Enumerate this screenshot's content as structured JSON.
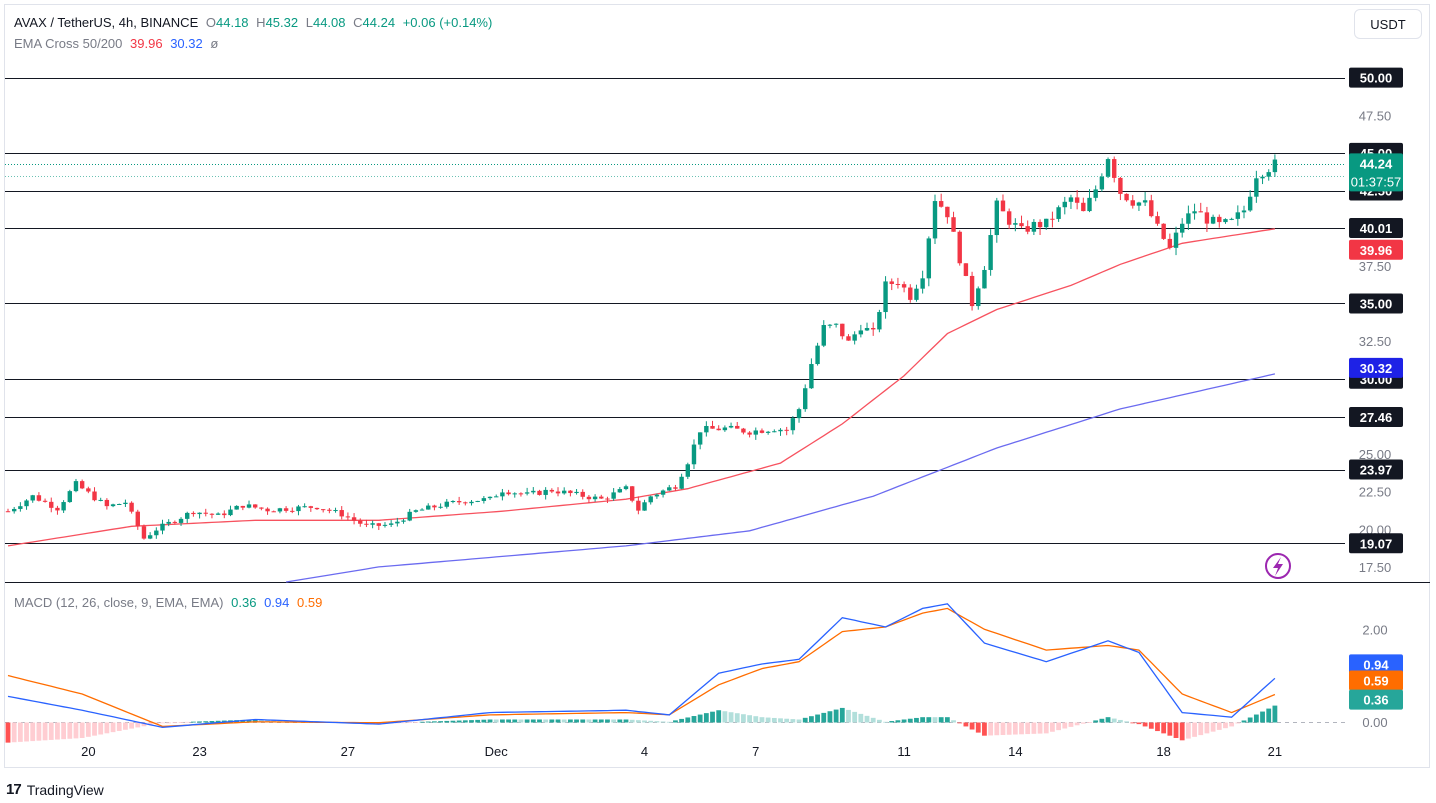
{
  "header": {
    "symbol": "AVAX / TetherUS, 4h, BINANCE",
    "o_label": "O",
    "o_value": "44.18",
    "h_label": "H",
    "h_value": "45.32",
    "l_label": "L",
    "l_value": "44.08",
    "c_label": "C",
    "c_value": "44.24",
    "change": "+0.06 (+0.14%)",
    "ema_label": "EMA Cross 50/200",
    "ema50_value": "39.96",
    "ema200_value": "30.32",
    "ema_extra": "ø"
  },
  "currency_button": "USDT",
  "macd_legend": {
    "label": "MACD (12, 26, close, 9, EMA, EMA)",
    "hist_value": "0.36",
    "macd_value": "0.94",
    "signal_value": "0.59"
  },
  "price_axis": {
    "ticks": [
      "47.50",
      "37.50",
      "32.50",
      "25.00",
      "22.50",
      "20.00",
      "17.50"
    ]
  },
  "horizontal_levels": [
    {
      "price": 50.0,
      "label": "50.00"
    },
    {
      "price": 45.0,
      "label": "45.00"
    },
    {
      "price": 42.5,
      "label": "42.50"
    },
    {
      "price": 40.01,
      "label": "40.01"
    },
    {
      "price": 35.0,
      "label": "35.00"
    },
    {
      "price": 30.0,
      "label": "30.00"
    },
    {
      "price": 27.46,
      "label": "27.46"
    },
    {
      "price": 23.97,
      "label": "23.97"
    },
    {
      "price": 19.07,
      "label": "19.07"
    }
  ],
  "price_badges": {
    "last_price": "44.24",
    "countdown": "01:37:57",
    "ema50": "39.96",
    "ema200": "30.32"
  },
  "macd_axis": {
    "ticks": [
      "2.00",
      "0.00"
    ],
    "badges": {
      "macd": "0.94",
      "signal": "0.59",
      "hist": "0.36"
    }
  },
  "x_axis": {
    "ticks": [
      {
        "label": "20",
        "bar": 13
      },
      {
        "label": "23",
        "bar": 31
      },
      {
        "label": "27",
        "bar": 55
      },
      {
        "label": "Dec",
        "bar": 79
      },
      {
        "label": "4",
        "bar": 103
      },
      {
        "label": "7",
        "bar": 121
      },
      {
        "label": "11",
        "bar": 145
      },
      {
        "label": "14",
        "bar": 163
      },
      {
        "label": "18",
        "bar": 187
      },
      {
        "label": "21",
        "bar": 205
      }
    ]
  },
  "colors": {
    "up": "#089981",
    "down": "#f23645",
    "ema50": "#f7525f",
    "ema200": "#6b6bf0",
    "macd": "#2962ff",
    "signal": "#ff6d00",
    "countdown_badge": "#089981",
    "ema50_badge": "#f23645",
    "ema200_badge": "#1e22e6"
  },
  "chart_data": {
    "type": "candlestick",
    "symbol": "AVAX / TetherUS",
    "interval": "4h",
    "ylim": [
      16.5,
      52.5
    ],
    "anchors": [
      {
        "bar": 0,
        "close": 21.2
      },
      {
        "bar": 4,
        "close": 22.2
      },
      {
        "bar": 8,
        "close": 21.4
      },
      {
        "bar": 11,
        "close": 23.0
      },
      {
        "bar": 16,
        "close": 21.5
      },
      {
        "bar": 19,
        "close": 21.8
      },
      {
        "bar": 22,
        "close": 19.4
      },
      {
        "bar": 24,
        "close": 20.0
      },
      {
        "bar": 27,
        "close": 20.6
      },
      {
        "bar": 30,
        "close": 21.2
      },
      {
        "bar": 34,
        "close": 20.9
      },
      {
        "bar": 38,
        "close": 21.6
      },
      {
        "bar": 42,
        "close": 21.3
      },
      {
        "bar": 46,
        "close": 21.4
      },
      {
        "bar": 50,
        "close": 21.5
      },
      {
        "bar": 54,
        "close": 21.0
      },
      {
        "bar": 58,
        "close": 20.2
      },
      {
        "bar": 62,
        "close": 20.3
      },
      {
        "bar": 66,
        "close": 21.2
      },
      {
        "bar": 70,
        "close": 21.6
      },
      {
        "bar": 74,
        "close": 21.9
      },
      {
        "bar": 78,
        "close": 22.0
      },
      {
        "bar": 80,
        "close": 22.6
      },
      {
        "bar": 84,
        "close": 22.3
      },
      {
        "bar": 88,
        "close": 22.6
      },
      {
        "bar": 92,
        "close": 22.3
      },
      {
        "bar": 96,
        "close": 22.0
      },
      {
        "bar": 100,
        "close": 22.7
      },
      {
        "bar": 102,
        "close": 21.3
      },
      {
        "bar": 104,
        "close": 22.2
      },
      {
        "bar": 108,
        "close": 22.9
      },
      {
        "bar": 110,
        "close": 24.5
      },
      {
        "bar": 112,
        "close": 26.6
      },
      {
        "bar": 116,
        "close": 26.7
      },
      {
        "bar": 120,
        "close": 26.5
      },
      {
        "bar": 124,
        "close": 26.7
      },
      {
        "bar": 126,
        "close": 26.6
      },
      {
        "bar": 128,
        "close": 28.0
      },
      {
        "bar": 130,
        "close": 31.0
      },
      {
        "bar": 132,
        "close": 33.4
      },
      {
        "bar": 134,
        "close": 33.5
      },
      {
        "bar": 136,
        "close": 32.4
      },
      {
        "bar": 138,
        "close": 33.5
      },
      {
        "bar": 140,
        "close": 33.0
      },
      {
        "bar": 142,
        "close": 36.2
      },
      {
        "bar": 144,
        "close": 36.5
      },
      {
        "bar": 146,
        "close": 35.5
      },
      {
        "bar": 148,
        "close": 37.0
      },
      {
        "bar": 150,
        "close": 42.0
      },
      {
        "bar": 152,
        "close": 41.0
      },
      {
        "bar": 154,
        "close": 38.0
      },
      {
        "bar": 156,
        "close": 35.0
      },
      {
        "bar": 158,
        "close": 37.5
      },
      {
        "bar": 160,
        "close": 41.5
      },
      {
        "bar": 162,
        "close": 40.5
      },
      {
        "bar": 164,
        "close": 39.8
      },
      {
        "bar": 166,
        "close": 40.2
      },
      {
        "bar": 168,
        "close": 40.3
      },
      {
        "bar": 170,
        "close": 41.2
      },
      {
        "bar": 172,
        "close": 42.0
      },
      {
        "bar": 174,
        "close": 41.0
      },
      {
        "bar": 176,
        "close": 42.6
      },
      {
        "bar": 178,
        "close": 44.8
      },
      {
        "bar": 180,
        "close": 42.4
      },
      {
        "bar": 182,
        "close": 41.8
      },
      {
        "bar": 184,
        "close": 41.6
      },
      {
        "bar": 186,
        "close": 40.0
      },
      {
        "bar": 188,
        "close": 38.6
      },
      {
        "bar": 190,
        "close": 40.4
      },
      {
        "bar": 192,
        "close": 41.2
      },
      {
        "bar": 194,
        "close": 40.6
      },
      {
        "bar": 196,
        "close": 40.2
      },
      {
        "bar": 198,
        "close": 40.4
      },
      {
        "bar": 200,
        "close": 41.2
      },
      {
        "bar": 202,
        "close": 43.6
      },
      {
        "bar": 205,
        "close": 44.24
      }
    ],
    "ema50": [
      {
        "bar": 0,
        "value": 18.9
      },
      {
        "bar": 20,
        "value": 20.2
      },
      {
        "bar": 40,
        "value": 20.6
      },
      {
        "bar": 60,
        "value": 20.6
      },
      {
        "bar": 80,
        "value": 21.2
      },
      {
        "bar": 100,
        "value": 22.0
      },
      {
        "bar": 110,
        "value": 22.7
      },
      {
        "bar": 125,
        "value": 24.4
      },
      {
        "bar": 135,
        "value": 27.0
      },
      {
        "bar": 145,
        "value": 30.2
      },
      {
        "bar": 152,
        "value": 33.0
      },
      {
        "bar": 160,
        "value": 34.6
      },
      {
        "bar": 172,
        "value": 36.2
      },
      {
        "bar": 180,
        "value": 37.6
      },
      {
        "bar": 190,
        "value": 39.0
      },
      {
        "bar": 205,
        "value": 39.96
      }
    ],
    "ema200": [
      {
        "bar": 45,
        "value": 16.5
      },
      {
        "bar": 60,
        "value": 17.5
      },
      {
        "bar": 100,
        "value": 18.9
      },
      {
        "bar": 120,
        "value": 19.9
      },
      {
        "bar": 140,
        "value": 22.2
      },
      {
        "bar": 160,
        "value": 25.4
      },
      {
        "bar": 180,
        "value": 28.0
      },
      {
        "bar": 205,
        "value": 30.32
      }
    ],
    "macd": {
      "ylim": [
        -0.35,
        3.0
      ],
      "macd_anchors": [
        {
          "bar": 0,
          "value": 0.55
        },
        {
          "bar": 12,
          "value": 0.25
        },
        {
          "bar": 25,
          "value": -0.12
        },
        {
          "bar": 40,
          "value": 0.05
        },
        {
          "bar": 60,
          "value": -0.05
        },
        {
          "bar": 78,
          "value": 0.2
        },
        {
          "bar": 100,
          "value": 0.25
        },
        {
          "bar": 107,
          "value": 0.15
        },
        {
          "bar": 115,
          "value": 1.05
        },
        {
          "bar": 122,
          "value": 1.25
        },
        {
          "bar": 128,
          "value": 1.35
        },
        {
          "bar": 135,
          "value": 2.25
        },
        {
          "bar": 142,
          "value": 2.05
        },
        {
          "bar": 148,
          "value": 2.45
        },
        {
          "bar": 152,
          "value": 2.55
        },
        {
          "bar": 158,
          "value": 1.7
        },
        {
          "bar": 168,
          "value": 1.3
        },
        {
          "bar": 178,
          "value": 1.75
        },
        {
          "bar": 183,
          "value": 1.5
        },
        {
          "bar": 190,
          "value": 0.2
        },
        {
          "bar": 198,
          "value": 0.1
        },
        {
          "bar": 205,
          "value": 0.94
        }
      ],
      "signal_anchors": [
        {
          "bar": 0,
          "value": 1.0
        },
        {
          "bar": 12,
          "value": 0.6
        },
        {
          "bar": 25,
          "value": -0.1
        },
        {
          "bar": 40,
          "value": 0.0
        },
        {
          "bar": 60,
          "value": -0.02
        },
        {
          "bar": 78,
          "value": 0.15
        },
        {
          "bar": 100,
          "value": 0.2
        },
        {
          "bar": 107,
          "value": 0.15
        },
        {
          "bar": 115,
          "value": 0.8
        },
        {
          "bar": 122,
          "value": 1.15
        },
        {
          "bar": 128,
          "value": 1.3
        },
        {
          "bar": 135,
          "value": 1.95
        },
        {
          "bar": 142,
          "value": 2.05
        },
        {
          "bar": 148,
          "value": 2.35
        },
        {
          "bar": 152,
          "value": 2.45
        },
        {
          "bar": 158,
          "value": 2.0
        },
        {
          "bar": 168,
          "value": 1.55
        },
        {
          "bar": 178,
          "value": 1.65
        },
        {
          "bar": 183,
          "value": 1.55
        },
        {
          "bar": 190,
          "value": 0.6
        },
        {
          "bar": 198,
          "value": 0.2
        },
        {
          "bar": 205,
          "value": 0.59
        }
      ]
    }
  }
}
